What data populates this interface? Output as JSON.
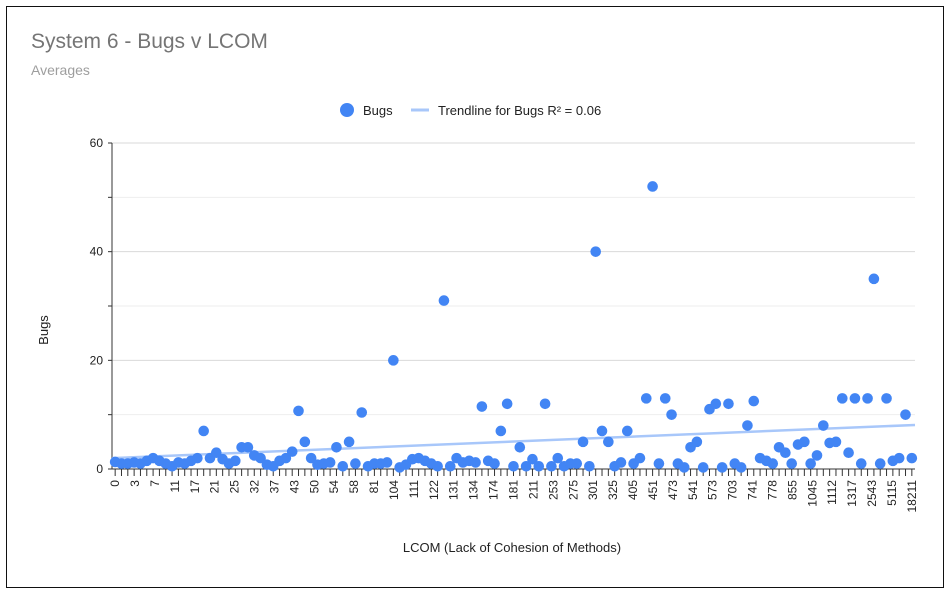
{
  "chart_data": {
    "type": "scatter",
    "title": "System 6 - Bugs v LCOM",
    "subtitle": "Averages",
    "xlabel": "LCOM (Lack of Cohesion of Methods)",
    "ylabel": "Bugs",
    "ylim": [
      0,
      60
    ],
    "yticks": [
      0,
      20,
      40,
      60
    ],
    "grid": true,
    "legend_position": "top",
    "legend": {
      "series_label": "Bugs",
      "trend_label": "Trendline for Bugs R² = 0.06"
    },
    "x_tick_labels": [
      "0",
      "3",
      "7",
      "11",
      "17",
      "21",
      "25",
      "32",
      "37",
      "43",
      "50",
      "54",
      "58",
      "81",
      "104",
      "111",
      "122",
      "131",
      "134",
      "174",
      "181",
      "211",
      "253",
      "275",
      "301",
      "325",
      "405",
      "451",
      "473",
      "541",
      "573",
      "703",
      "741",
      "778",
      "855",
      "1045",
      "1112",
      "1317",
      "2543",
      "5115",
      "18211"
    ],
    "series": [
      {
        "name": "Bugs",
        "color": "#4285f4",
        "values": [
          1.3,
          1.0,
          1.0,
          1.2,
          1.0,
          1.5,
          2.0,
          1.5,
          1.0,
          0.5,
          1.2,
          1.0,
          1.5,
          2.0,
          7.0,
          2.0,
          3.0,
          1.8,
          1.0,
          1.5,
          4.0,
          4.0,
          2.5,
          2.0,
          0.8,
          0.5,
          1.5,
          2.0,
          3.2,
          10.7,
          5.0,
          2.0,
          0.8,
          1.0,
          1.2,
          4.0,
          0.5,
          5.0,
          1.0,
          10.4,
          0.5,
          1.0,
          1.0,
          1.2,
          20.0,
          0.3,
          0.8,
          1.8,
          2.0,
          1.5,
          1.0,
          0.5,
          31.0,
          0.5,
          2.0,
          1.2,
          1.5,
          1.2,
          11.5,
          1.5,
          1.0,
          7.0,
          12.0,
          0.5,
          4.0,
          0.5,
          1.8,
          0.5,
          12.0,
          0.5,
          2.0,
          0.5,
          1.0,
          1.0,
          5.0,
          0.5,
          40.0,
          7.0,
          5.0,
          0.5,
          1.2,
          7.0,
          1.0,
          2.0,
          13.0,
          52.0,
          1.0,
          13.0,
          10.0,
          1.0,
          0.3,
          4.0,
          5.0,
          0.3,
          11.0,
          12.0,
          0.3,
          12.0,
          1.0,
          0.3,
          8.0,
          12.5,
          2.0,
          1.5,
          1.0,
          4.0,
          3.0,
          1.0,
          4.5,
          5.0,
          1.0,
          2.5,
          8.0,
          4.8,
          5.0,
          13.0,
          3.0,
          13.0,
          1.0,
          13.0,
          35.0,
          1.0,
          13.0,
          1.5,
          2.0,
          10.0,
          2.0
        ]
      }
    ],
    "trendline": {
      "name": "Trendline for Bugs",
      "r_squared": 0.06,
      "color": "#a8c7fa",
      "y_start": 2.0,
      "y_end": 8.1
    }
  }
}
